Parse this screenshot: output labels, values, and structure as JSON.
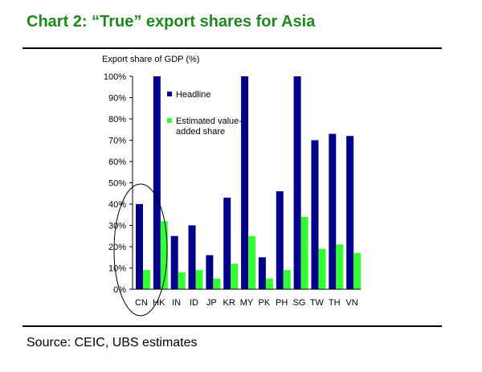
{
  "title": "Chart 2: “True” export shares for Asia",
  "source": "Source: CEIC, UBS estimates",
  "chart_data": {
    "type": "bar",
    "ylabel": "Export share of GDP (%)",
    "categories": [
      "CN",
      "HK",
      "IN",
      "ID",
      "JP",
      "KR",
      "MY",
      "PK",
      "PH",
      "SG",
      "TW",
      "TH",
      "VN"
    ],
    "ylim": [
      0,
      100
    ],
    "yticks": [
      "0%",
      "10%",
      "20%",
      "30%",
      "40%",
      "50%",
      "60%",
      "70%",
      "80%",
      "90%",
      "100%"
    ],
    "series": [
      {
        "name": "Headline",
        "color": "#00008b",
        "values": [
          40,
          100,
          25,
          30,
          16,
          43,
          100,
          15,
          46,
          100,
          70,
          73,
          72
        ]
      },
      {
        "name": "Estimated value-added share",
        "legend_lines": [
          "Estimated value-",
          "added share"
        ],
        "color": "#33ff33",
        "values": [
          9,
          32,
          8,
          9,
          5,
          12,
          25,
          5,
          9,
          34,
          19,
          21,
          17
        ]
      }
    ],
    "annotation": "ellipse around CN and HK",
    "grid": false,
    "legend": "top-left inside plot"
  }
}
